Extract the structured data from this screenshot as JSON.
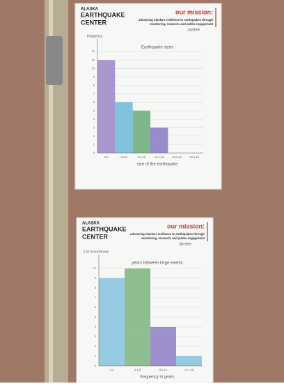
{
  "header": {
    "org_line1": "ALASKA",
    "org_line2": "EARTHQUAKE",
    "org_line3": "CENTER",
    "mission_title": "our mission:",
    "mission_line1": "advancing Alaska's resilience to earthquakes through",
    "mission_line2": "monitoring, research, and public engagement"
  },
  "chart_data": [
    {
      "type": "bar",
      "title": "Earthquake sizes",
      "author": "Jantee",
      "y_label": "frequency",
      "x_label": "size of the earthquake",
      "categories": [
        "0-4",
        "4.1-8",
        "8.1-12",
        "12.1-16",
        "16.1-20",
        "20.1-24"
      ],
      "values": [
        11,
        6,
        5,
        3,
        0,
        0
      ],
      "colors": [
        "#9b86c9",
        "#6fb8d8",
        "#6aaa78",
        "#8a79c4",
        "#9b86c9",
        "#9b86c9"
      ],
      "ylim": [
        0,
        13
      ],
      "yticks": [
        0,
        1,
        2,
        3,
        4,
        5,
        6,
        7,
        8,
        9,
        10,
        11,
        12
      ],
      "grid": true
    },
    {
      "type": "bar",
      "title": "years between large events",
      "author": "Jantee",
      "y_label": "# of occurrences",
      "x_label": "frequency in years",
      "categories": [
        "0-4",
        "4.1-8",
        "8.1-12",
        "12.1-16"
      ],
      "values": [
        9,
        10,
        4,
        1
      ],
      "colors": [
        "#86c3de",
        "#7cb57e",
        "#8e7cc6",
        "#86c3de"
      ],
      "ylim": [
        0,
        11
      ],
      "yticks": [
        0,
        1,
        2,
        3,
        4,
        5,
        6,
        7,
        8,
        9,
        10
      ],
      "grid": true
    }
  ]
}
